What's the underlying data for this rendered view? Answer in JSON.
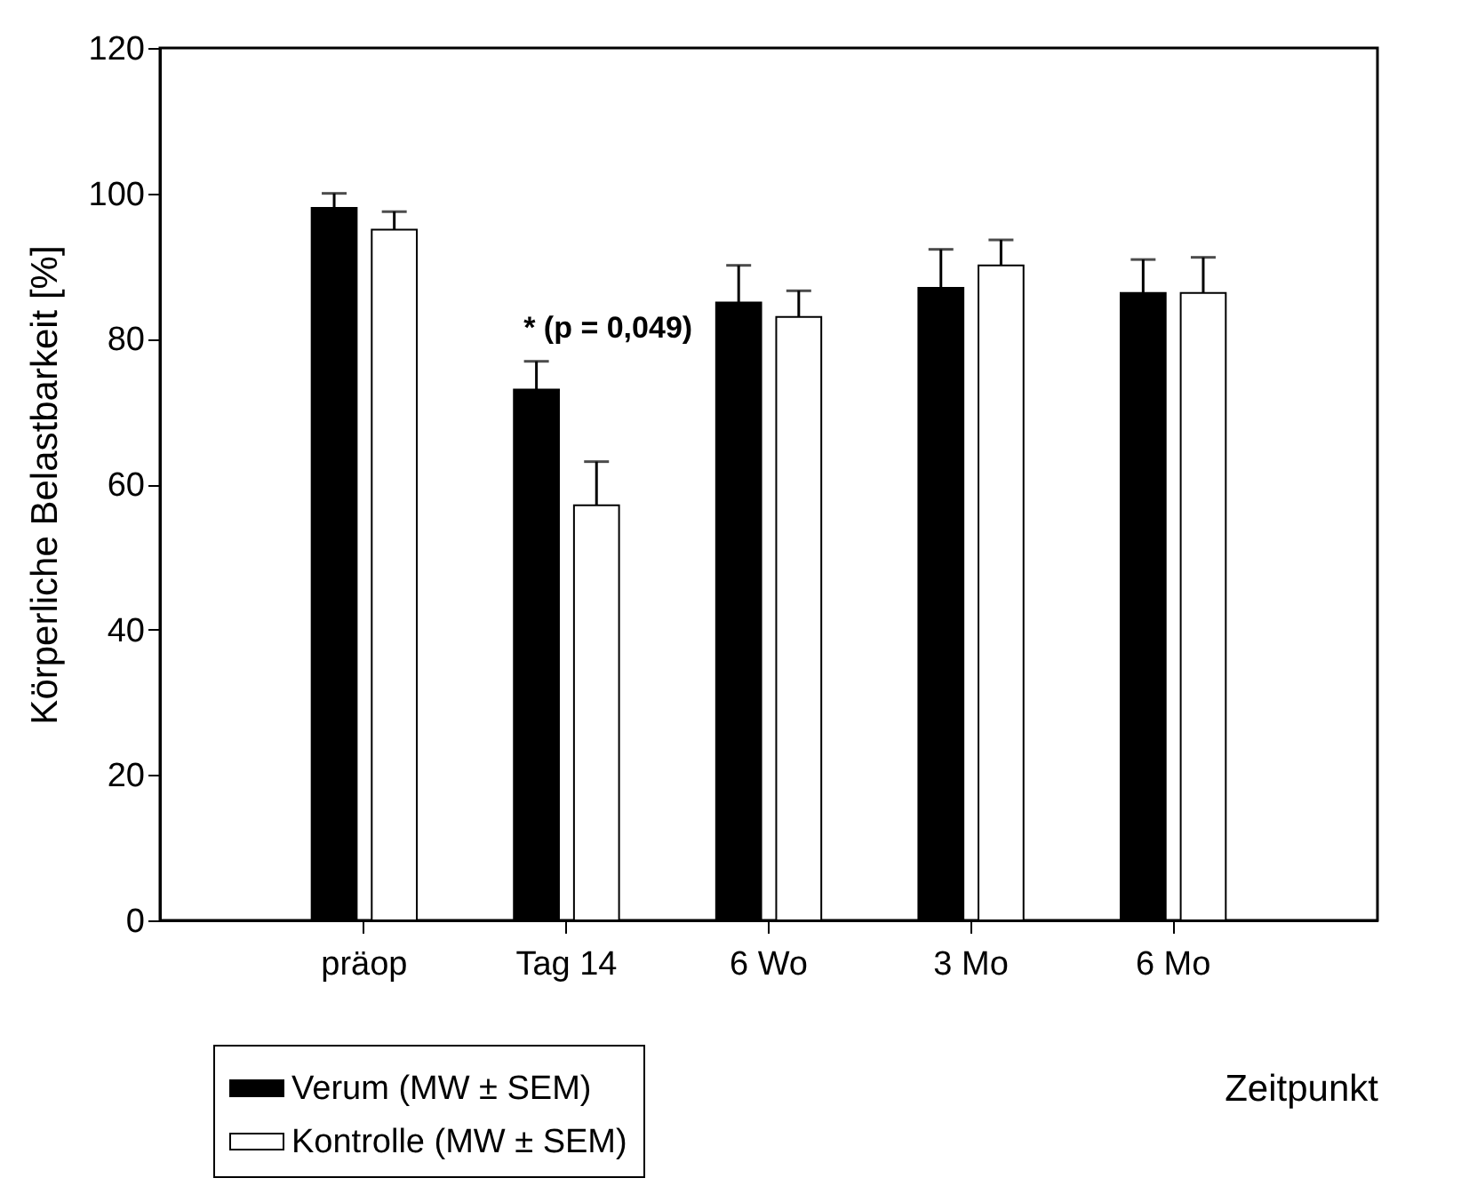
{
  "chart_data": {
    "type": "bar",
    "xlabel": "Zeitpunkt",
    "ylabel": "Körperliche Belastbarkeit [%]",
    "categories": [
      "präop",
      "Tag 14",
      "6 Wo",
      "3 Mo",
      "6 Mo"
    ],
    "series": [
      {
        "name": "Verum (MW ± SEM)",
        "color": "#000000",
        "values": [
          98.0,
          73.0,
          85.0,
          87.0,
          86.3
        ],
        "errors": [
          [
            98.0,
            100.0
          ],
          [
            73.0,
            76.9
          ],
          [
            85.0,
            90.1
          ],
          [
            87.0,
            92.3
          ],
          [
            86.3,
            90.9
          ]
        ]
      },
      {
        "name": "Kontrolle (MW ± SEM)",
        "color": "#ffffff",
        "values": [
          95.0,
          57.1,
          83.0,
          90.1,
          86.3
        ],
        "errors": [
          [
            95.0,
            97.5
          ],
          [
            57.1,
            63.1
          ],
          [
            83.0,
            86.6
          ],
          [
            90.1,
            93.6
          ],
          [
            86.3,
            91.2
          ]
        ]
      }
    ],
    "ylim": [
      0,
      120
    ],
    "yticks": [
      0,
      20,
      40,
      60,
      80,
      100,
      120
    ],
    "grid": false,
    "legend": "bottom left",
    "annotations": [
      "* (p = 0,049)"
    ]
  }
}
